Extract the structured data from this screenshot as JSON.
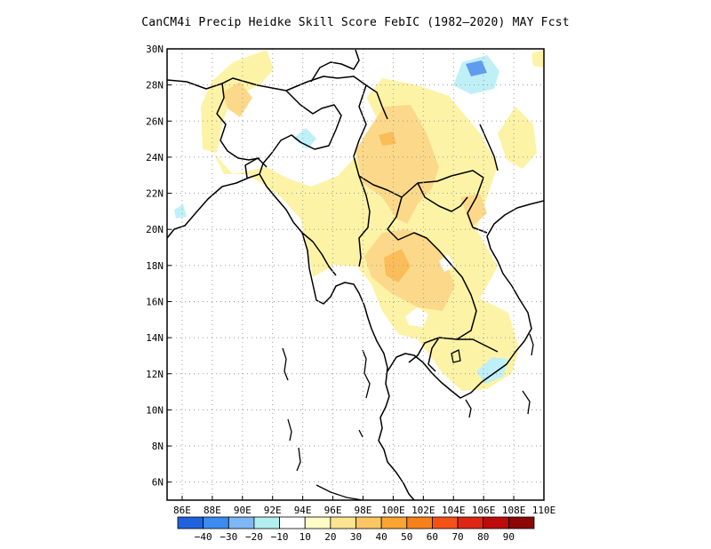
{
  "title": "CanCM4i Precip Heidke Skill Score FebIC (1982–2020) MAY Fcst",
  "map": {
    "lat_labels": [
      "30N",
      "28N",
      "26N",
      "24N",
      "22N",
      "20N",
      "18N",
      "16N",
      "14N",
      "12N",
      "10N",
      "8N",
      "6N"
    ],
    "lon_labels": [
      "86E",
      "88E",
      "90E",
      "92E",
      "94E",
      "96E",
      "98E",
      "100E",
      "102E",
      "104E",
      "106E",
      "108E",
      "110E"
    ],
    "lat_range": [
      5,
      30
    ],
    "lon_range": [
      85,
      110
    ],
    "grid": "dotted",
    "field_colors": {
      "pos_light": "#fdf3a6",
      "pos_mid": "#fcd98a",
      "pos_strong": "#fbbd5a",
      "neg_light": "#bff0f7",
      "neg_strong": "#5f9cf0"
    }
  },
  "colorbar": {
    "labels": [
      "−40",
      "−30",
      "−20",
      "−10",
      "10",
      "20",
      "30",
      "40",
      "50",
      "60",
      "70",
      "80",
      "90"
    ],
    "colors": [
      "#1f62dd",
      "#3b8cf0",
      "#7fb7f4",
      "#b4efef",
      "#ffffff",
      "#fffcc6",
      "#fde490",
      "#fcc663",
      "#faa532",
      "#f8801b",
      "#f45117",
      "#de2613",
      "#bd0b0b",
      "#8c0606"
    ]
  }
}
